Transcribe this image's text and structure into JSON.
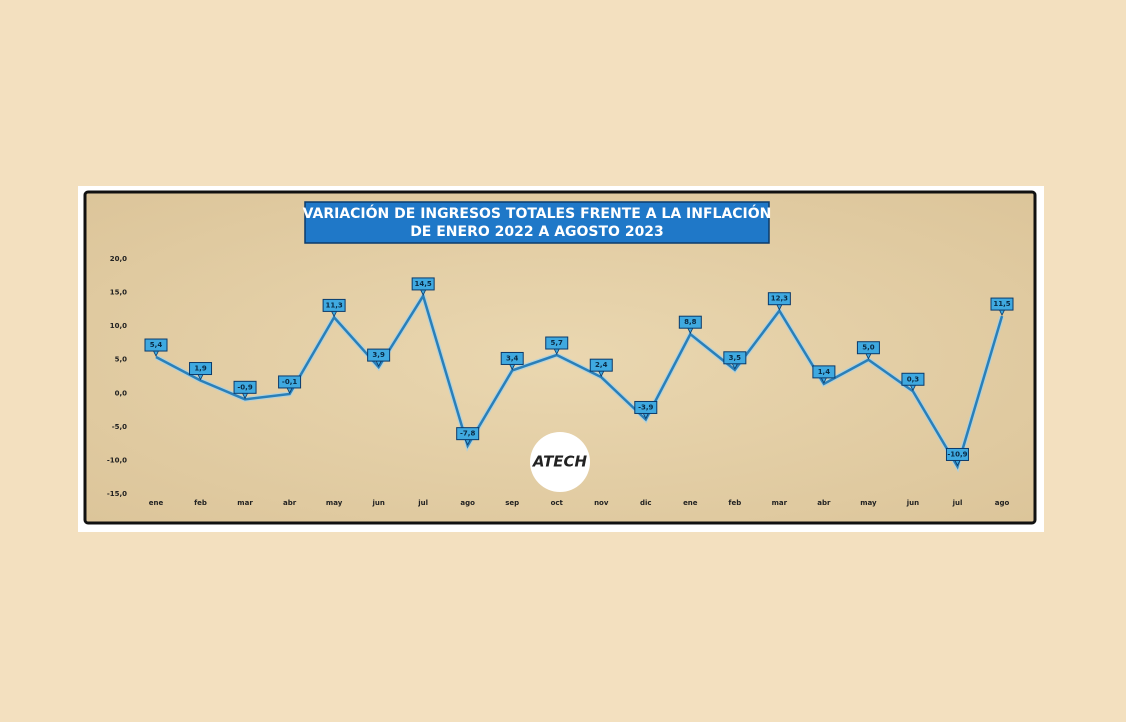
{
  "chart_data": {
    "type": "line",
    "title_lines": [
      "VARIACIÓN DE INGRESOS TOTALES FRENTE A LA INFLACIÓN",
      "DE ENERO 2022 A AGOSTO 2023"
    ],
    "logo": "ATECH",
    "categories": [
      "ene",
      "feb",
      "mar",
      "abr",
      "may",
      "jun",
      "jul",
      "ago",
      "sep",
      "oct",
      "nov",
      "dic",
      "ene",
      "feb",
      "mar",
      "abr",
      "may",
      "jun",
      "jul",
      "ago"
    ],
    "values": [
      5.4,
      1.9,
      -0.9,
      -0.1,
      11.3,
      3.9,
      14.5,
      -7.8,
      3.4,
      5.7,
      2.4,
      -3.9,
      8.8,
      3.5,
      12.3,
      1.4,
      5.0,
      0.3,
      -10.9,
      11.5
    ],
    "value_labels": [
      "5,4",
      "1,9",
      "-0,9",
      "-0,1",
      "11,3",
      "3,9",
      "14,5",
      "-7,8",
      "3,4",
      "5,7",
      "2,4",
      "-3,9",
      "8,8",
      "3,5",
      "12,3",
      "1,4",
      "5,0",
      "0,3",
      "-10,9",
      "11,5"
    ],
    "color": "#2a7fb8",
    "ylim": [
      -15,
      20
    ],
    "yticks": [
      {
        "value": -15,
        "label": "-15,0"
      },
      {
        "value": -10,
        "label": "-10,0"
      },
      {
        "value": -5,
        "label": "-5,0"
      },
      {
        "value": 0,
        "label": "0,0"
      },
      {
        "value": 5,
        "label": "5,0"
      },
      {
        "value": 10,
        "label": "10,0"
      },
      {
        "value": 15,
        "label": "15,0"
      },
      {
        "value": 20,
        "label": "20,0"
      }
    ],
    "grid": false
  }
}
